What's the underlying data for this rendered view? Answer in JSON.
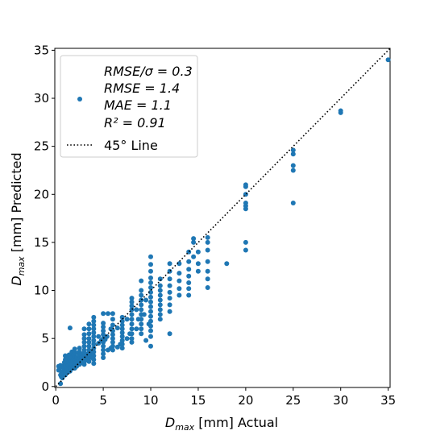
{
  "chart_data": {
    "type": "scatter",
    "xlabel_main": "D",
    "xlabel_sub": "max",
    "xlabel_rest": " [mm] Actual",
    "ylabel_main": "D",
    "ylabel_sub": "max",
    "ylabel_rest": " [mm] Predicted",
    "xlim": [
      -0.1,
      35.2
    ],
    "ylim": [
      -0.1,
      35.2
    ],
    "xticks": [
      0,
      5,
      10,
      15,
      20,
      25,
      30,
      35
    ],
    "yticks": [
      0,
      5,
      10,
      15,
      20,
      25,
      30,
      35
    ],
    "grid": false,
    "legend_position": "upper-left",
    "series": [
      {
        "name_lines": [
          "RMSE/σ = 0.3",
          "RMSE = 1.4",
          "MAE = 1.1",
          "R² = 0.91"
        ],
        "color": "#1f77b4",
        "marker": "circle",
        "points": [
          [
            0.3,
            1.7
          ],
          [
            0.3,
            2.1
          ],
          [
            0.4,
            1.9
          ],
          [
            0.5,
            1.2
          ],
          [
            0.5,
            0.3
          ],
          [
            0.5,
            2.2
          ],
          [
            0.6,
            1.5
          ],
          [
            0.6,
            1.0
          ],
          [
            0.7,
            2.0
          ],
          [
            0.7,
            0.9
          ],
          [
            0.8,
            1.3
          ],
          [
            0.8,
            2.1
          ],
          [
            0.9,
            1.8
          ],
          [
            0.9,
            2.5
          ],
          [
            1.0,
            1.2
          ],
          [
            1.0,
            1.6
          ],
          [
            1.0,
            2.0
          ],
          [
            1.0,
            2.4
          ],
          [
            1.0,
            2.8
          ],
          [
            1.0,
            3.2
          ],
          [
            1.1,
            1.4
          ],
          [
            1.1,
            2.6
          ],
          [
            1.2,
            1.8
          ],
          [
            1.2,
            3.0
          ],
          [
            1.3,
            1.5
          ],
          [
            1.3,
            2.2
          ],
          [
            1.4,
            2.6
          ],
          [
            1.4,
            3.3
          ],
          [
            1.5,
            1.6
          ],
          [
            1.5,
            2.0
          ],
          [
            1.5,
            2.4
          ],
          [
            1.5,
            2.8
          ],
          [
            1.5,
            3.2
          ],
          [
            1.5,
            6.1
          ],
          [
            1.6,
            1.9
          ],
          [
            1.6,
            3.0
          ],
          [
            1.7,
            2.3
          ],
          [
            1.7,
            3.6
          ],
          [
            1.8,
            1.9
          ],
          [
            1.8,
            2.7
          ],
          [
            1.9,
            2.1
          ],
          [
            1.9,
            3.3
          ],
          [
            2.0,
            1.9
          ],
          [
            2.0,
            2.3
          ],
          [
            2.0,
            2.7
          ],
          [
            2.0,
            3.1
          ],
          [
            2.0,
            3.5
          ],
          [
            2.0,
            3.9
          ],
          [
            2.1,
            2.5
          ],
          [
            2.2,
            2.1
          ],
          [
            2.2,
            3.0
          ],
          [
            2.3,
            2.4
          ],
          [
            2.3,
            3.5
          ],
          [
            2.4,
            2.7
          ],
          [
            2.5,
            2.3
          ],
          [
            2.5,
            2.6
          ],
          [
            2.5,
            2.9
          ],
          [
            2.5,
            3.2
          ],
          [
            2.5,
            3.6
          ],
          [
            2.5,
            4.0
          ],
          [
            2.6,
            2.6
          ],
          [
            2.7,
            3.0
          ],
          [
            2.8,
            2.5
          ],
          [
            2.8,
            3.4
          ],
          [
            2.9,
            2.9
          ],
          [
            3.0,
            2.3
          ],
          [
            3.0,
            2.6
          ],
          [
            3.0,
            2.9
          ],
          [
            3.0,
            3.2
          ],
          [
            3.0,
            3.5
          ],
          [
            3.0,
            3.8
          ],
          [
            3.0,
            4.2
          ],
          [
            3.0,
            4.6
          ],
          [
            3.0,
            5.0
          ],
          [
            3.0,
            5.4
          ],
          [
            3.0,
            6.0
          ],
          [
            3.1,
            2.7
          ],
          [
            3.2,
            3.1
          ],
          [
            3.3,
            3.4
          ],
          [
            3.4,
            2.9
          ],
          [
            3.5,
            2.6
          ],
          [
            3.5,
            3.0
          ],
          [
            3.5,
            3.4
          ],
          [
            3.5,
            3.8
          ],
          [
            3.5,
            4.2
          ],
          [
            3.5,
            4.6
          ],
          [
            3.5,
            5.0
          ],
          [
            3.5,
            5.5
          ],
          [
            3.5,
            6.0
          ],
          [
            3.5,
            6.5
          ],
          [
            3.6,
            3.2
          ],
          [
            3.7,
            3.6
          ],
          [
            3.8,
            3.0
          ],
          [
            3.9,
            3.4
          ],
          [
            4.0,
            2.4
          ],
          [
            4.0,
            2.8
          ],
          [
            4.0,
            3.2
          ],
          [
            4.0,
            3.6
          ],
          [
            4.0,
            4.0
          ],
          [
            4.0,
            4.4
          ],
          [
            4.0,
            4.8
          ],
          [
            4.0,
            5.2
          ],
          [
            4.0,
            5.6
          ],
          [
            4.0,
            6.0
          ],
          [
            4.0,
            6.4
          ],
          [
            4.0,
            6.8
          ],
          [
            4.0,
            7.2
          ],
          [
            4.5,
            4.5
          ],
          [
            4.5,
            5.2
          ],
          [
            4.8,
            4.8
          ],
          [
            5.0,
            3.0
          ],
          [
            5.0,
            3.4
          ],
          [
            5.0,
            3.8
          ],
          [
            5.0,
            4.2
          ],
          [
            5.0,
            4.6
          ],
          [
            5.0,
            5.0
          ],
          [
            5.0,
            5.4
          ],
          [
            5.0,
            5.8
          ],
          [
            5.0,
            6.2
          ],
          [
            5.0,
            6.6
          ],
          [
            5.0,
            7.6
          ],
          [
            5.2,
            4.9
          ],
          [
            5.4,
            5.2
          ],
          [
            5.5,
            3.8
          ],
          [
            5.5,
            7.6
          ],
          [
            5.8,
            4.0
          ],
          [
            5.8,
            6.0
          ],
          [
            6.0,
            3.8
          ],
          [
            6.0,
            4.2
          ],
          [
            6.0,
            4.6
          ],
          [
            6.0,
            5.0
          ],
          [
            6.0,
            5.4
          ],
          [
            6.0,
            5.8
          ],
          [
            6.0,
            6.4
          ],
          [
            6.0,
            7.0
          ],
          [
            6.0,
            7.6
          ],
          [
            6.5,
            4.1
          ],
          [
            6.5,
            6.1
          ],
          [
            6.8,
            4.4
          ],
          [
            7.0,
            4.0
          ],
          [
            7.0,
            4.4
          ],
          [
            7.0,
            4.8
          ],
          [
            7.0,
            5.2
          ],
          [
            7.0,
            5.6
          ],
          [
            7.0,
            6.0
          ],
          [
            7.0,
            6.4
          ],
          [
            7.0,
            6.8
          ],
          [
            7.0,
            7.2
          ],
          [
            7.5,
            5.0
          ],
          [
            7.5,
            7.0
          ],
          [
            7.8,
            5.5
          ],
          [
            8.0,
            4.6
          ],
          [
            8.0,
            5.0
          ],
          [
            8.0,
            5.5
          ],
          [
            8.0,
            6.0
          ],
          [
            8.0,
            6.5
          ],
          [
            8.0,
            7.0
          ],
          [
            8.0,
            7.5
          ],
          [
            8.0,
            8.0
          ],
          [
            8.0,
            8.4
          ],
          [
            8.0,
            8.8
          ],
          [
            8.0,
            9.2
          ],
          [
            8.5,
            6.0
          ],
          [
            8.5,
            8.0
          ],
          [
            8.7,
            7.0
          ],
          [
            9.0,
            5.5
          ],
          [
            9.0,
            6.0
          ],
          [
            9.0,
            6.5
          ],
          [
            9.0,
            7.0
          ],
          [
            9.0,
            7.5
          ],
          [
            9.0,
            8.0
          ],
          [
            9.0,
            8.5
          ],
          [
            9.0,
            9.0
          ],
          [
            9.0,
            9.5
          ],
          [
            9.0,
            10.0
          ],
          [
            9.0,
            11.0
          ],
          [
            9.3,
            7.5
          ],
          [
            9.5,
            4.8
          ],
          [
            9.5,
            9.0
          ],
          [
            9.8,
            6.5
          ],
          [
            10.0,
            4.2
          ],
          [
            10.0,
            5.2
          ],
          [
            10.0,
            5.8
          ],
          [
            10.0,
            6.3
          ],
          [
            10.0,
            6.8
          ],
          [
            10.0,
            7.3
          ],
          [
            10.0,
            7.8
          ],
          [
            10.0,
            8.3
          ],
          [
            10.0,
            8.8
          ],
          [
            10.0,
            9.3
          ],
          [
            10.0,
            9.8
          ],
          [
            10.0,
            10.3
          ],
          [
            10.0,
            10.8
          ],
          [
            10.0,
            11.3
          ],
          [
            10.0,
            12.0
          ],
          [
            10.0,
            12.7
          ],
          [
            10.0,
            13.5
          ],
          [
            11.0,
            7.0
          ],
          [
            11.0,
            7.5
          ],
          [
            11.0,
            8.0
          ],
          [
            11.0,
            8.5
          ],
          [
            11.0,
            9.0
          ],
          [
            11.0,
            9.5
          ],
          [
            11.0,
            10.0
          ],
          [
            11.0,
            10.5
          ],
          [
            11.0,
            11.2
          ],
          [
            12.0,
            5.5
          ],
          [
            12.0,
            7.8
          ],
          [
            12.0,
            8.5
          ],
          [
            12.0,
            9.2
          ],
          [
            12.0,
            9.8
          ],
          [
            12.0,
            10.5
          ],
          [
            12.0,
            11.2
          ],
          [
            12.0,
            12.0
          ],
          [
            12.0,
            12.8
          ],
          [
            13.0,
            9.5
          ],
          [
            13.0,
            10.2
          ],
          [
            13.0,
            11.0
          ],
          [
            13.0,
            11.8
          ],
          [
            13.0,
            12.8
          ],
          [
            14.0,
            9.5
          ],
          [
            14.0,
            10.2
          ],
          [
            14.0,
            10.8
          ],
          [
            14.0,
            11.5
          ],
          [
            14.0,
            12.2
          ],
          [
            14.0,
            13.0
          ],
          [
            14.0,
            14.0
          ],
          [
            14.5,
            13.5
          ],
          [
            14.5,
            15.0
          ],
          [
            14.5,
            15.4
          ],
          [
            15.0,
            12.0
          ],
          [
            15.0,
            12.8
          ],
          [
            15.0,
            14.0
          ],
          [
            16.0,
            10.3
          ],
          [
            16.0,
            11.2
          ],
          [
            16.0,
            12.0
          ],
          [
            16.0,
            13.0
          ],
          [
            16.0,
            14.2
          ],
          [
            16.0,
            15.0
          ],
          [
            16.0,
            15.5
          ],
          [
            18.0,
            12.8
          ],
          [
            20.0,
            14.2
          ],
          [
            20.0,
            15.0
          ],
          [
            20.0,
            18.5
          ],
          [
            20.0,
            18.8
          ],
          [
            20.0,
            19.1
          ],
          [
            20.0,
            20.0
          ],
          [
            20.0,
            20.8
          ],
          [
            20.0,
            21.0
          ],
          [
            25.0,
            19.1
          ],
          [
            25.0,
            22.5
          ],
          [
            25.0,
            23.0
          ],
          [
            25.0,
            24.2
          ],
          [
            25.0,
            24.6
          ],
          [
            30.0,
            28.5
          ],
          [
            30.0,
            28.7
          ],
          [
            35.0,
            34.0
          ]
        ]
      },
      {
        "name": "45° Line",
        "color": "#000000",
        "linestyle": "dotted",
        "points": [
          [
            0,
            0
          ],
          [
            35.2,
            35.2
          ]
        ]
      }
    ]
  }
}
